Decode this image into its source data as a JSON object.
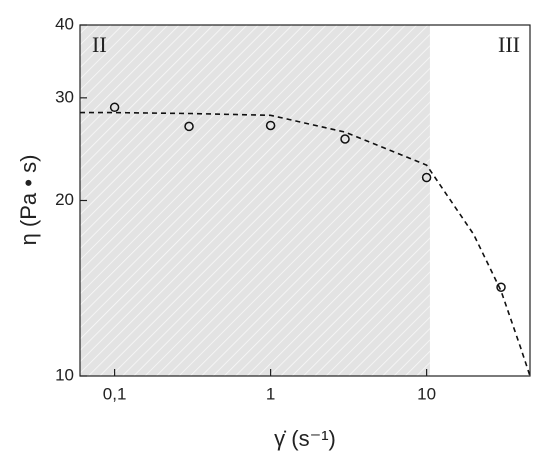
{
  "chart_data": {
    "type": "scatter",
    "xlabel": "γ̇ (s⁻¹)",
    "ylabel": "η (Pa • s)",
    "annotations": [
      "II",
      "III"
    ],
    "xscale": "log",
    "yscale": "log",
    "xlim": [
      0.06,
      46
    ],
    "ylim": [
      10,
      40
    ],
    "xticks": [
      {
        "value": 0.1,
        "label": "0,1"
      },
      1,
      10
    ],
    "yticks": [
      10,
      20,
      30,
      40
    ],
    "shade_xmax": 10.5,
    "shade_color": "#e3e3e3",
    "series": [
      {
        "kind": "points",
        "color": "#111111",
        "x": [
          0.1,
          0.3,
          1,
          3,
          10,
          30
        ],
        "values": [
          28.9,
          26.8,
          26.9,
          25.5,
          21.9,
          14.2
        ]
      },
      {
        "kind": "fit",
        "color": "#111111",
        "x": [
          0.06,
          0.1,
          0.3,
          1,
          3,
          10,
          20,
          30,
          40,
          46
        ],
        "values": [
          28.3,
          28.3,
          28.2,
          28.0,
          26.2,
          23.0,
          17.5,
          14.0,
          11.2,
          10
        ]
      }
    ]
  }
}
